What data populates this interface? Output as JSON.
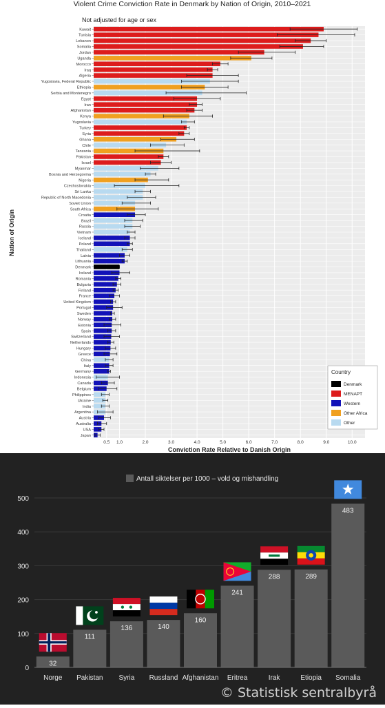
{
  "chart_data": [
    {
      "type": "bar",
      "orientation": "horizontal",
      "title": "Violent Crime Conviction Rate in Denmark by Nation of Origin, 2010–2021",
      "subtitle": "Not adjusted for age or sex",
      "xlabel": "Conviction Rate Relative to Danish Origin",
      "ylabel": "Nation of Origin",
      "xlim": [
        0,
        10.5
      ],
      "xticks": [
        "0.5",
        "1.0",
        "2.0",
        "3.0",
        "4.0",
        "5.0",
        "6.0",
        "7.0",
        "8.0",
        "9.0",
        "10.0"
      ],
      "grid": true,
      "error_bars": true,
      "legend": {
        "title": "Country",
        "placement": "bottom-right",
        "entries": [
          {
            "label": "Denmark",
            "color": "#000000"
          },
          {
            "label": "MENAPT",
            "color": "#dd1c1c"
          },
          {
            "label": "Western",
            "color": "#1212b8"
          },
          {
            "label": "Other Africa",
            "color": "#f0a020"
          },
          {
            "label": "Other",
            "color": "#b8daf0"
          }
        ]
      },
      "group_colors": {
        "Denmark": "#000000",
        "MENAPT": "#dd1c1c",
        "Western": "#1212b8",
        "Other Africa": "#f0a020",
        "Other": "#b8daf0"
      },
      "bars": [
        {
          "label": "Kuwait",
          "value": 8.9,
          "low": 7.6,
          "high": 10.2,
          "group": "MENAPT"
        },
        {
          "label": "Tunisia",
          "value": 8.7,
          "low": 7.1,
          "high": 10.1,
          "group": "MENAPT"
        },
        {
          "label": "Lebanon",
          "value": 8.4,
          "low": 7.8,
          "high": 9.0,
          "group": "MENAPT"
        },
        {
          "label": "Somalia",
          "value": 8.1,
          "low": 7.2,
          "high": 8.9,
          "group": "MENAPT"
        },
        {
          "label": "Jordan",
          "value": 6.6,
          "low": 5.6,
          "high": 7.8,
          "group": "MENAPT"
        },
        {
          "label": "Uganda",
          "value": 6.1,
          "low": 5.3,
          "high": 6.9,
          "group": "Other Africa"
        },
        {
          "label": "Morocco",
          "value": 4.9,
          "low": 4.6,
          "high": 5.2,
          "group": "MENAPT"
        },
        {
          "label": "Iraq",
          "value": 4.6,
          "low": 4.4,
          "high": 4.8,
          "group": "MENAPT"
        },
        {
          "label": "Algeria",
          "value": 4.6,
          "low": 3.6,
          "high": 5.6,
          "group": "MENAPT"
        },
        {
          "label": "Yugoslavia, Federal Republic",
          "value": 4.5,
          "low": 3.4,
          "high": 5.6,
          "group": "Other"
        },
        {
          "label": "Ethiopia",
          "value": 4.3,
          "low": 3.4,
          "high": 5.2,
          "group": "Other Africa"
        },
        {
          "label": "Serbia and Montenegro",
          "value": 4.2,
          "low": 2.8,
          "high": 5.9,
          "group": "Other"
        },
        {
          "label": "Egypt",
          "value": 4.0,
          "low": 3.1,
          "high": 4.9,
          "group": "MENAPT"
        },
        {
          "label": "Iran",
          "value": 4.0,
          "low": 3.7,
          "high": 4.2,
          "group": "MENAPT"
        },
        {
          "label": "Afghanistan",
          "value": 3.9,
          "low": 3.6,
          "high": 4.2,
          "group": "MENAPT"
        },
        {
          "label": "Kenya",
          "value": 3.7,
          "low": 2.7,
          "high": 4.6,
          "group": "Other Africa"
        },
        {
          "label": "Yugoslavia",
          "value": 3.6,
          "low": 3.4,
          "high": 3.9,
          "group": "Other"
        },
        {
          "label": "Turkey",
          "value": 3.6,
          "low": 3.5,
          "high": 3.7,
          "group": "MENAPT"
        },
        {
          "label": "Syria",
          "value": 3.5,
          "low": 3.3,
          "high": 3.7,
          "group": "MENAPT"
        },
        {
          "label": "Ghana",
          "value": 3.2,
          "low": 2.6,
          "high": 3.9,
          "group": "Other Africa"
        },
        {
          "label": "Chile",
          "value": 2.8,
          "low": 2.2,
          "high": 3.5,
          "group": "Other"
        },
        {
          "label": "Tanzania",
          "value": 2.7,
          "low": 1.6,
          "high": 4.1,
          "group": "Other Africa"
        },
        {
          "label": "Pakistan",
          "value": 2.7,
          "low": 2.5,
          "high": 2.9,
          "group": "MENAPT"
        },
        {
          "label": "Israel",
          "value": 2.6,
          "low": 2.2,
          "high": 3.0,
          "group": "MENAPT"
        },
        {
          "label": "Myanmar",
          "value": 2.5,
          "low": 1.8,
          "high": 3.3,
          "group": "Other"
        },
        {
          "label": "Bosnia and Herzegovina",
          "value": 2.2,
          "low": 2.0,
          "high": 2.4,
          "group": "Other"
        },
        {
          "label": "Nigeria",
          "value": 2.1,
          "low": 1.6,
          "high": 2.9,
          "group": "Other Africa"
        },
        {
          "label": "Czechoslovakia",
          "value": 2.0,
          "low": 0.8,
          "high": 3.3,
          "group": "Other"
        },
        {
          "label": "Sri Lanka",
          "value": 1.9,
          "low": 1.6,
          "high": 2.2,
          "group": "Other"
        },
        {
          "label": "Republic of North Macedonia",
          "value": 1.9,
          "low": 1.3,
          "high": 2.4,
          "group": "Other"
        },
        {
          "label": "Soviet Union",
          "value": 1.6,
          "low": 1.1,
          "high": 2.2,
          "group": "Other"
        },
        {
          "label": "South Africa",
          "value": 1.6,
          "low": 0.9,
          "high": 2.5,
          "group": "Other Africa"
        },
        {
          "label": "Croatia",
          "value": 1.6,
          "low": 1.3,
          "high": 2.0,
          "group": "Western"
        },
        {
          "label": "Brazil",
          "value": 1.5,
          "low": 1.2,
          "high": 1.9,
          "group": "Other"
        },
        {
          "label": "Russia",
          "value": 1.5,
          "low": 1.2,
          "high": 1.8,
          "group": "Other"
        },
        {
          "label": "Vietnam",
          "value": 1.4,
          "low": 1.3,
          "high": 1.6,
          "group": "Other"
        },
        {
          "label": "Iceland",
          "value": 1.4,
          "low": 1.2,
          "high": 1.6,
          "group": "Western"
        },
        {
          "label": "Poland",
          "value": 1.4,
          "low": 1.3,
          "high": 1.5,
          "group": "Western"
        },
        {
          "label": "Thailand",
          "value": 1.3,
          "low": 1.1,
          "high": 1.5,
          "group": "Other"
        },
        {
          "label": "Latvia",
          "value": 1.2,
          "low": 1.0,
          "high": 1.4,
          "group": "Western"
        },
        {
          "label": "Lithuania",
          "value": 1.2,
          "low": 1.1,
          "high": 1.3,
          "group": "Western"
        },
        {
          "label": "Denmark",
          "value": 1.0,
          "low": 1.0,
          "high": 1.0,
          "group": "Denmark"
        },
        {
          "label": "Ireland",
          "value": 1.0,
          "low": 0.7,
          "high": 1.4,
          "group": "Western"
        },
        {
          "label": "Romania",
          "value": 0.95,
          "low": 0.85,
          "high": 1.05,
          "group": "Western"
        },
        {
          "label": "Bulgaria",
          "value": 0.9,
          "low": 0.75,
          "high": 1.05,
          "group": "Western"
        },
        {
          "label": "Finland",
          "value": 0.85,
          "low": 0.75,
          "high": 0.95,
          "group": "Western"
        },
        {
          "label": "France",
          "value": 0.8,
          "low": 0.6,
          "high": 1.0,
          "group": "Western"
        },
        {
          "label": "United Kingdom",
          "value": 0.75,
          "low": 0.65,
          "high": 0.85,
          "group": "Western"
        },
        {
          "label": "Portugal",
          "value": 0.75,
          "low": 0.5,
          "high": 1.1,
          "group": "Western"
        },
        {
          "label": "Sweden",
          "value": 0.72,
          "low": 0.65,
          "high": 0.8,
          "group": "Western"
        },
        {
          "label": "Norway",
          "value": 0.72,
          "low": 0.6,
          "high": 0.85,
          "group": "Western"
        },
        {
          "label": "Estonia",
          "value": 0.7,
          "low": 0.4,
          "high": 1.05,
          "group": "Western"
        },
        {
          "label": "Spain",
          "value": 0.7,
          "low": 0.55,
          "high": 0.85,
          "group": "Western"
        },
        {
          "label": "Switzerland",
          "value": 0.68,
          "low": 0.4,
          "high": 1.0,
          "group": "Western"
        },
        {
          "label": "Netherlands",
          "value": 0.66,
          "low": 0.55,
          "high": 0.78,
          "group": "Western"
        },
        {
          "label": "Hungary",
          "value": 0.65,
          "low": 0.45,
          "high": 0.85,
          "group": "Western"
        },
        {
          "label": "Greece",
          "value": 0.63,
          "low": 0.4,
          "high": 0.9,
          "group": "Western"
        },
        {
          "label": "China",
          "value": 0.6,
          "low": 0.45,
          "high": 0.75,
          "group": "Other"
        },
        {
          "label": "Italy",
          "value": 0.6,
          "low": 0.45,
          "high": 0.75,
          "group": "Western"
        },
        {
          "label": "Germany",
          "value": 0.6,
          "low": 0.55,
          "high": 0.65,
          "group": "Western"
        },
        {
          "label": "Indonesia",
          "value": 0.55,
          "low": 0.1,
          "high": 1.0,
          "group": "Other"
        },
        {
          "label": "Canada",
          "value": 0.55,
          "low": 0.3,
          "high": 0.8,
          "group": "Western"
        },
        {
          "label": "Belgium",
          "value": 0.5,
          "low": 0.2,
          "high": 0.9,
          "group": "Western"
        },
        {
          "label": "Philippines",
          "value": 0.45,
          "low": 0.3,
          "high": 0.6,
          "group": "Other"
        },
        {
          "label": "Ukraine",
          "value": 0.45,
          "low": 0.35,
          "high": 0.55,
          "group": "Other"
        },
        {
          "label": "India",
          "value": 0.45,
          "low": 0.3,
          "high": 0.6,
          "group": "Other"
        },
        {
          "label": "Argentina",
          "value": 0.45,
          "low": 0.15,
          "high": 0.75,
          "group": "Other"
        },
        {
          "label": "Austria",
          "value": 0.4,
          "low": 0.2,
          "high": 0.65,
          "group": "Western"
        },
        {
          "label": "Australia",
          "value": 0.3,
          "low": 0.15,
          "high": 0.5,
          "group": "Western"
        },
        {
          "label": "USA",
          "value": 0.3,
          "low": 0.2,
          "high": 0.4,
          "group": "Western"
        },
        {
          "label": "Japan",
          "value": 0.15,
          "low": 0.05,
          "high": 0.25,
          "group": "Western"
        }
      ]
    },
    {
      "type": "bar",
      "orientation": "vertical",
      "legend_label": "Antall siktelser per 1000 – vold og mishandling",
      "ylim": [
        0,
        500
      ],
      "yticks": [
        0,
        100,
        200,
        300,
        400,
        500
      ],
      "bar_color": "#5a5a5a",
      "categories": [
        "Norge",
        "Pakistan",
        "Syria",
        "Russland",
        "Afghanistan",
        "Eritrea",
        "Irak",
        "Etiopia",
        "Somalia"
      ],
      "values": [
        32,
        111,
        136,
        140,
        160,
        241,
        288,
        289,
        483
      ],
      "flags": [
        "norway-flag",
        "pakistan-flag",
        "syria-flag",
        "russia-flag",
        "afghanistan-flag",
        "eritrea-flag",
        "iraq-flag",
        "ethiopia-flag",
        "somalia-flag"
      ],
      "source": "© Statistisk sentralbyrå"
    }
  ]
}
